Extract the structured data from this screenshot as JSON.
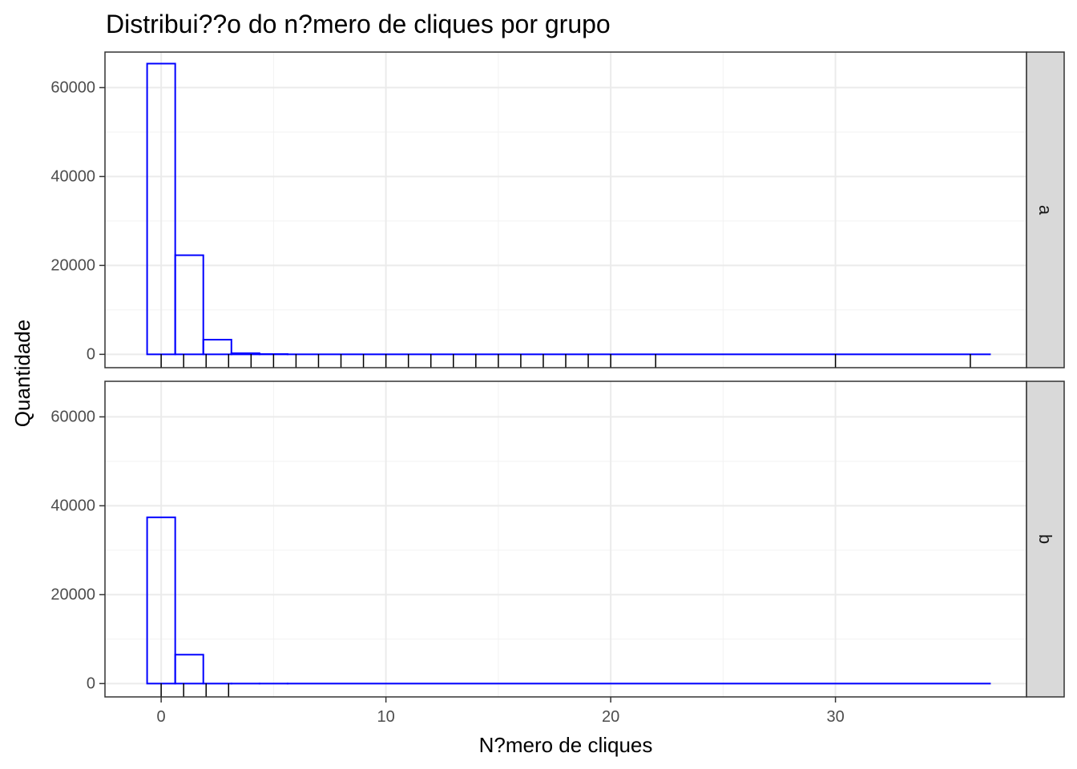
{
  "chart_data": {
    "type": "bar",
    "title": "Distribui??o do n?mero de cliques por grupo",
    "xlabel": "N?mero de cliques",
    "ylabel": "Quantidade",
    "xlim": [
      -2.5,
      38.5
    ],
    "ylim": [
      -3000,
      68000
    ],
    "x_ticks": [
      0,
      10,
      20,
      30
    ],
    "y_ticks": [
      0,
      20000,
      40000,
      60000
    ],
    "grid": true,
    "bin_edges": [
      -0.625,
      0.625,
      1.875,
      3.125,
      4.375,
      5.625,
      36.875
    ],
    "bar_color": "#0000ff",
    "panels": [
      {
        "name": "a",
        "bin_counts": [
          65400,
          22300,
          3300,
          250,
          60,
          5
        ],
        "rug": [
          0,
          1,
          2,
          3,
          4,
          5,
          6,
          7,
          8,
          9,
          10,
          11,
          12,
          13,
          14,
          15,
          16,
          17,
          18,
          19,
          20,
          22,
          30,
          36
        ]
      },
      {
        "name": "b",
        "bin_counts": [
          37400,
          6500,
          0,
          0,
          0,
          0
        ],
        "rug": [
          0,
          1,
          2,
          3
        ]
      }
    ]
  }
}
